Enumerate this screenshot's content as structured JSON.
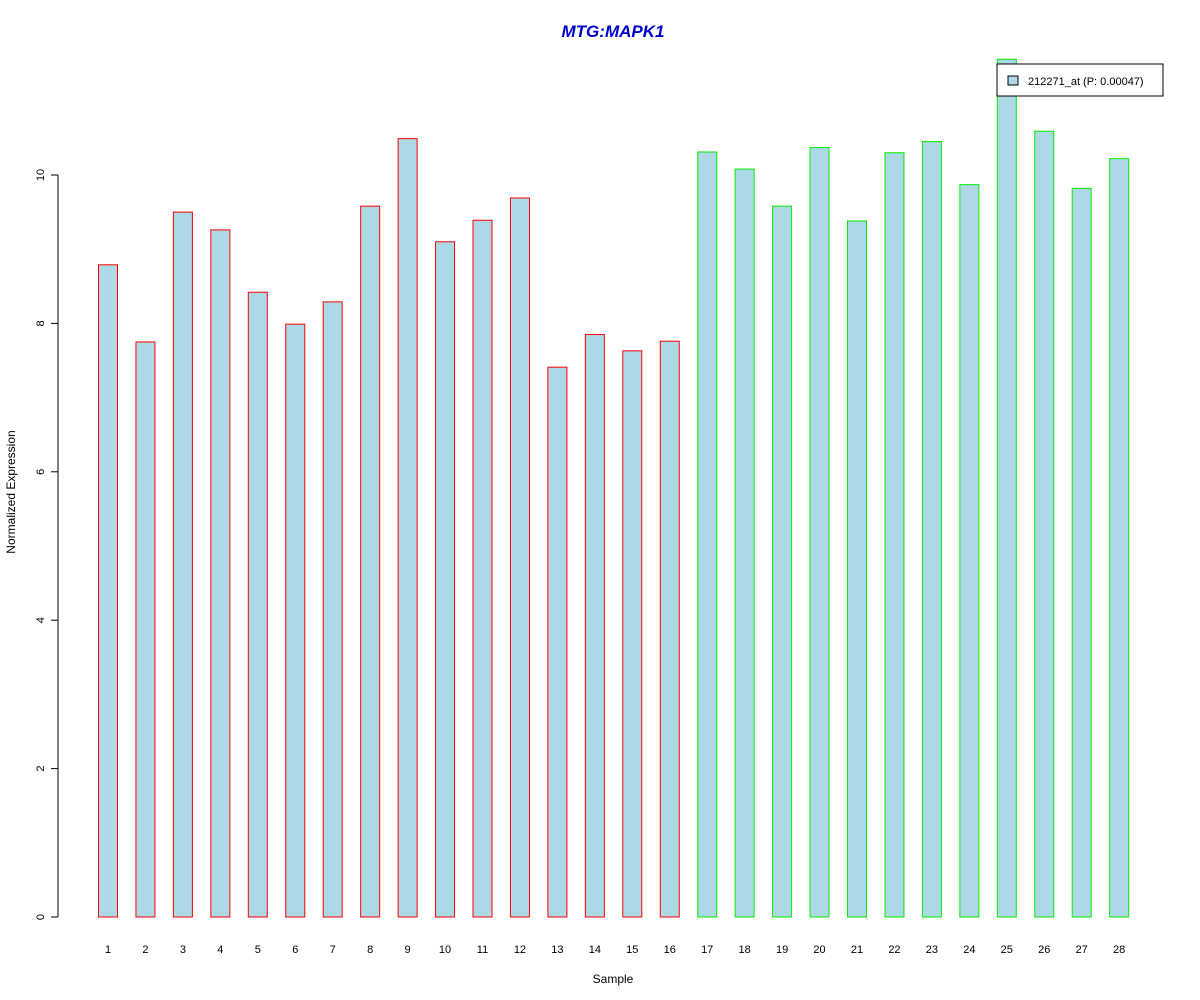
{
  "chart_data": {
    "type": "bar",
    "title": "MTG:MAPK1",
    "title_color": "#0000cc",
    "xlabel": "Sample",
    "ylabel": "Normalized Expression",
    "ylim": [
      0,
      11.6
    ],
    "yticks": [
      0,
      2,
      4,
      6,
      8,
      10
    ],
    "grid": false,
    "legend_position": "top-right",
    "categories": [
      "1",
      "2",
      "3",
      "4",
      "5",
      "6",
      "7",
      "8",
      "9",
      "10",
      "11",
      "12",
      "13",
      "14",
      "15",
      "16",
      "17",
      "18",
      "19",
      "20",
      "21",
      "22",
      "23",
      "24",
      "25",
      "26",
      "27",
      "28"
    ],
    "series": [
      {
        "name": "212271_at (P: 0.00047)",
        "values": [
          8.79,
          7.75,
          9.5,
          9.26,
          8.42,
          7.99,
          8.29,
          9.58,
          10.49,
          9.1,
          9.39,
          9.69,
          7.41,
          7.85,
          7.63,
          7.76,
          10.31,
          10.08,
          9.58,
          10.37,
          9.38,
          10.3,
          10.45,
          9.87,
          11.56,
          10.59,
          9.82,
          10.22
        ],
        "fill_color": "#add8e6",
        "border_colors": [
          "#ff0000",
          "#ff0000",
          "#ff0000",
          "#ff0000",
          "#ff0000",
          "#ff0000",
          "#ff0000",
          "#ff0000",
          "#ff0000",
          "#ff0000",
          "#ff0000",
          "#ff0000",
          "#ff0000",
          "#ff0000",
          "#ff0000",
          "#ff0000",
          "#00ee00",
          "#00ee00",
          "#00ee00",
          "#00ee00",
          "#00ee00",
          "#00ee00",
          "#00ee00",
          "#00ee00",
          "#00ee00",
          "#00ee00",
          "#00ee00",
          "#00ee00"
        ]
      }
    ]
  }
}
